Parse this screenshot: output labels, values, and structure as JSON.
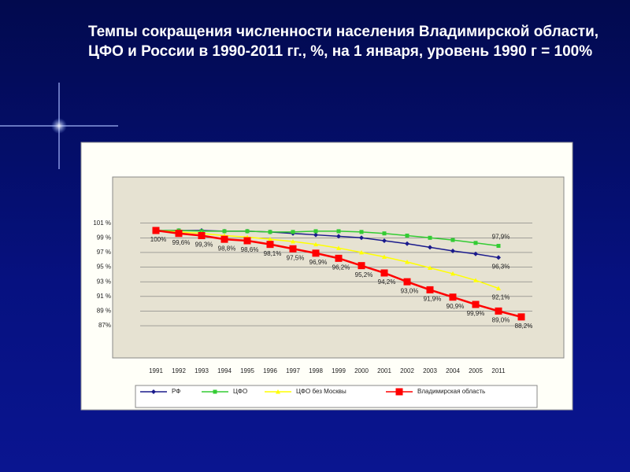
{
  "chart_data": {
    "type": "line",
    "title": "Темпы сокращения численности населения Владимирской области, ЦФО и России в 1990-2011 гг., %, на 1 января, уровень 1990 г = 100%",
    "categories": [
      "1991",
      "1992",
      "1993",
      "1994",
      "1995",
      "1996",
      "1997",
      "1998",
      "1999",
      "2000",
      "2001",
      "2002",
      "2003",
      "2004",
      "2005",
      "2011",
      null
    ],
    "ylim": [
      82.6,
      107.3
    ],
    "yticks": [
      {
        "value": 101,
        "label": "101 %"
      },
      {
        "value": 99,
        "label": "99 %"
      },
      {
        "value": 97,
        "label": "97 %"
      },
      {
        "value": 95,
        "label": "95 %"
      },
      {
        "value": 93,
        "label": "93 %"
      },
      {
        "value": 91,
        "label": "91 %"
      },
      {
        "value": 89,
        "label": "89 %"
      },
      {
        "value": 87,
        "label": "87%"
      }
    ],
    "grid": true,
    "series": [
      {
        "name": "РФ",
        "color": "#1a1a8c",
        "marker": "diamond",
        "values": [
          100,
          100,
          100,
          99.9,
          99.9,
          99.8,
          99.6,
          99.4,
          99.2,
          99.0,
          98.6,
          98.2,
          97.7,
          97.2,
          96.8,
          96.3,
          null
        ],
        "value_labels": [
          null,
          null,
          null,
          null,
          null,
          null,
          null,
          null,
          null,
          null,
          null,
          null,
          null,
          null,
          null,
          "96,3%",
          null
        ]
      },
      {
        "name": "ЦФО",
        "color": "#33cc33",
        "marker": "square",
        "values": [
          100,
          100,
          99.9,
          99.9,
          99.9,
          99.8,
          99.8,
          99.9,
          99.9,
          99.8,
          99.6,
          99.3,
          99.0,
          98.7,
          98.3,
          97.9,
          null
        ],
        "value_labels": [
          null,
          null,
          null,
          null,
          null,
          null,
          null,
          null,
          null,
          null,
          null,
          null,
          null,
          null,
          null,
          "97,9%",
          null
        ]
      },
      {
        "name": "ЦФО без Москвы",
        "color": "#ffff00",
        "marker": "triangle",
        "values": [
          100,
          99.8,
          99.6,
          99.3,
          99.1,
          98.8,
          98.5,
          98.1,
          97.6,
          97.0,
          96.4,
          95.7,
          94.9,
          94.1,
          93.2,
          92.1,
          null
        ],
        "value_labels": [
          null,
          null,
          null,
          null,
          null,
          null,
          null,
          null,
          null,
          null,
          null,
          null,
          null,
          null,
          null,
          "92,1%",
          null
        ]
      },
      {
        "name": "Владимирская область",
        "color": "#ff0000",
        "marker": "bigsquare",
        "values": [
          100,
          99.6,
          99.3,
          98.8,
          98.6,
          98.1,
          97.5,
          96.9,
          96.2,
          95.2,
          94.2,
          93.0,
          91.9,
          90.9,
          89.9,
          89.0,
          88.2
        ],
        "value_labels": [
          "100%",
          "99,6%",
          "99,3%",
          "98,8%",
          "98,6%",
          "98,1%",
          "97,5%",
          "96,9%",
          "96,2%",
          "95,2%",
          "94,2%",
          "93,0%",
          "91,9%",
          "90,9%",
          null,
          "89,0%",
          "88,2%"
        ]
      }
    ],
    "annotations": [
      "99,9%"
    ]
  }
}
